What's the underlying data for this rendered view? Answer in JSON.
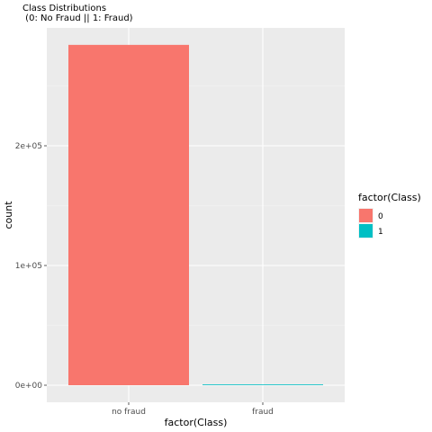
{
  "chart_data": {
    "type": "bar",
    "title": "Class Distributions",
    "subtitle": " (0: No Fraud || 1: Fraud)",
    "categories": [
      "no fraud",
      "fraud"
    ],
    "values": [
      284315,
      492
    ],
    "xlabel": "factor(Class)",
    "ylabel": "count",
    "ylim": [
      0,
      300000
    ],
    "yticks": [
      0,
      100000,
      200000
    ],
    "ytick_labels": [
      "0e+00",
      "1e+05",
      "2e+05"
    ],
    "grid": true,
    "legend": {
      "title": "factor(Class)",
      "placement": "right",
      "entries": [
        {
          "label": "0",
          "color": "#F8766D"
        },
        {
          "label": "1",
          "color": "#00BFC4"
        }
      ]
    },
    "colors": [
      "#F8766D",
      "#00BFC4"
    ]
  }
}
